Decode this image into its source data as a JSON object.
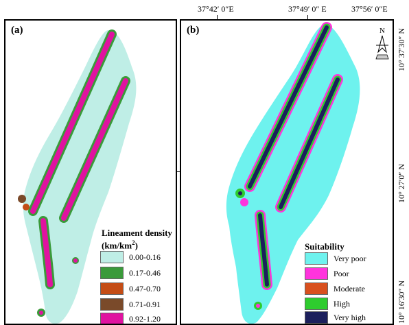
{
  "coordinates": {
    "longitudes": [
      "37°42′ 0″E",
      "37°49′ 0″ E",
      "37°56′ 0″E"
    ],
    "latitudes": [
      "10° 37′30″ N",
      "10° 27′0″ N",
      "10° 16′30″ N"
    ]
  },
  "north_arrow": {
    "letter": "N"
  },
  "panel_a": {
    "label": "(a)",
    "legend": {
      "title_line1": "Lineament density",
      "title_line2": "(km/km",
      "title_sup": "2",
      "title_end": ")",
      "classes": [
        {
          "label": "0.00-0.16",
          "color": "#bfeee6"
        },
        {
          "label": "0.17-0.46",
          "color": "#3a9a3a"
        },
        {
          "label": "0.47-0.70",
          "color": "#c44d16"
        },
        {
          "label": "0.71-0.91",
          "color": "#7a4a2a"
        },
        {
          "label": "0.92-1.20",
          "color": "#e012a0"
        }
      ]
    }
  },
  "panel_b": {
    "label": "(b)",
    "legend": {
      "title": "Suitability",
      "classes": [
        {
          "label": "Very poor",
          "color": "#6ef2ee"
        },
        {
          "label": "Poor",
          "color": "#ff33dd"
        },
        {
          "label": "Moderate",
          "color": "#d9501e"
        },
        {
          "label": "High",
          "color": "#2ecc2e"
        },
        {
          "label": "Very high",
          "color": "#1c1f5c"
        }
      ]
    }
  }
}
